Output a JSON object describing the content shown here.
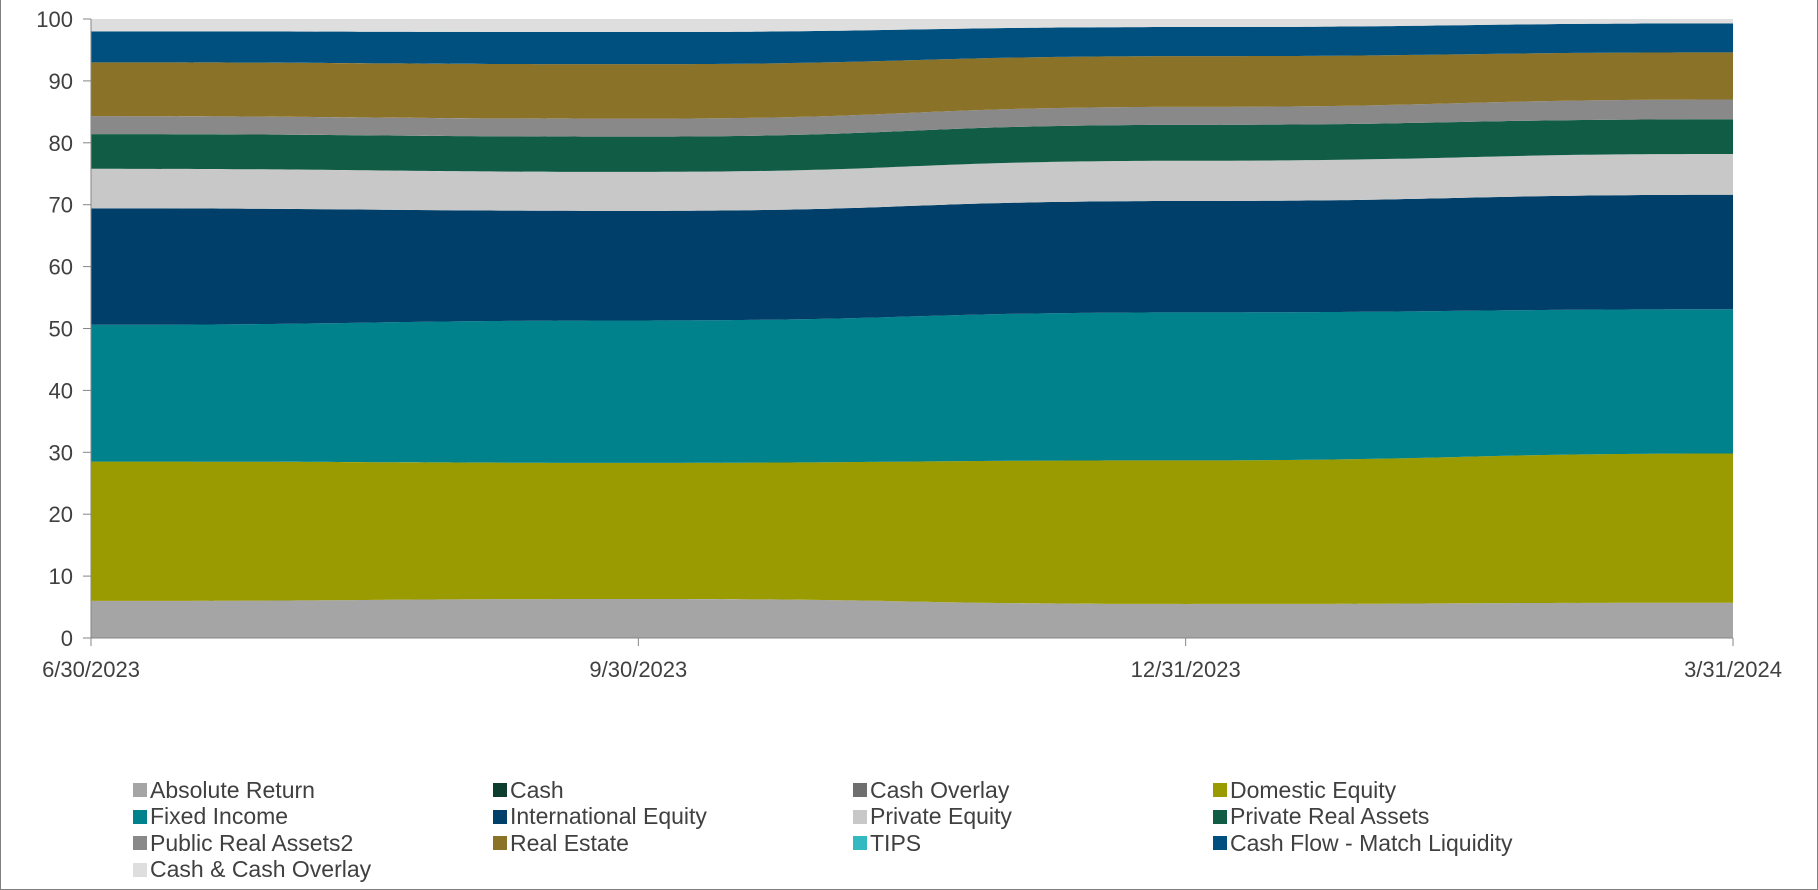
{
  "chart_data": {
    "type": "area",
    "stacked": true,
    "x": [
      "6/30/2023",
      "9/30/2023",
      "12/31/2023",
      "3/31/2024"
    ],
    "ylim": [
      0,
      100
    ],
    "yticks": [
      0,
      10,
      20,
      30,
      40,
      50,
      60,
      70,
      80,
      90,
      100
    ],
    "grid": false,
    "legend_position": "bottom",
    "series": [
      {
        "name": "Absolute Return",
        "color": "#a5a5a5",
        "values": [
          6.0,
          6.3,
          5.5,
          5.7
        ]
      },
      {
        "name": "Cash",
        "color": "#0d3d2e",
        "values": [
          0,
          0,
          0,
          0
        ]
      },
      {
        "name": "Cash Overlay",
        "color": "#6f6f6f",
        "values": [
          0,
          0,
          0,
          0
        ]
      },
      {
        "name": "Domestic Equity",
        "color": "#999b00",
        "values": [
          22.5,
          22.0,
          23.2,
          24.1
        ]
      },
      {
        "name": "Fixed Income",
        "color": "#00828c",
        "values": [
          22.1,
          23.0,
          23.9,
          23.3
        ]
      },
      {
        "name": "International Equity",
        "color": "#003f6a",
        "values": [
          18.8,
          17.7,
          18.0,
          18.5
        ]
      },
      {
        "name": "Private Equity",
        "color": "#c8c8c8",
        "values": [
          6.4,
          6.3,
          6.5,
          6.6
        ]
      },
      {
        "name": "Private Real Assets",
        "color": "#115c45",
        "values": [
          5.6,
          5.7,
          5.8,
          5.6
        ]
      },
      {
        "name": "Public Real Assets2",
        "color": "#898989",
        "values": [
          2.9,
          2.9,
          2.9,
          3.2
        ]
      },
      {
        "name": "Real Estate",
        "color": "#8b7229",
        "values": [
          8.7,
          8.8,
          8.2,
          7.6
        ]
      },
      {
        "name": "TIPS",
        "color": "#33b9c0",
        "values": [
          0,
          0,
          0,
          0
        ]
      },
      {
        "name": "Cash Flow - Match Liquidity",
        "color": "#00507f",
        "values": [
          5.0,
          5.2,
          4.7,
          4.7
        ]
      },
      {
        "name": "Cash & Cash Overlay",
        "color": "#dedede",
        "values": [
          2.0,
          2.1,
          1.3,
          0.7
        ]
      }
    ]
  }
}
